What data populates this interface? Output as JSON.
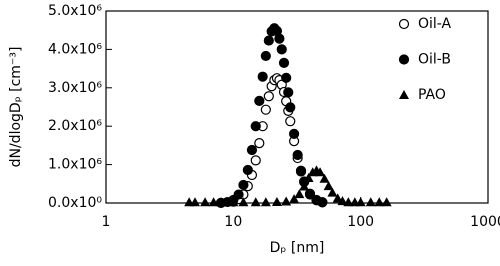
{
  "chart_data": {
    "type": "scatter",
    "x_label": "Dₚ [nm]",
    "y_label": "dN/dlogDₚ [cm⁻³]",
    "xscale": "log",
    "xlim": [
      1,
      1000
    ],
    "xticks": [
      1,
      10,
      100,
      1000
    ],
    "ylim": [
      0,
      5000000
    ],
    "yticks": [
      {
        "value": 0,
        "label": "0.0x10⁰"
      },
      {
        "value": 1000000,
        "label": "1.0x10⁶"
      },
      {
        "value": 2000000,
        "label": "2.0x10⁶"
      },
      {
        "value": 3000000,
        "label": "3.0x10⁶"
      },
      {
        "value": 4000000,
        "label": "4.0x10⁶"
      },
      {
        "value": 5000000,
        "label": "5.0x10⁶"
      }
    ],
    "legend": "top-right",
    "series": [
      {
        "name": "Oil-A",
        "color": "#000000",
        "marker": "open-circle",
        "x": [
          8,
          10,
          11,
          12,
          13,
          14,
          15,
          16,
          17,
          18,
          19,
          20,
          21,
          22,
          23,
          24,
          25,
          26,
          27,
          28,
          30,
          32,
          34,
          36,
          40,
          45,
          50
        ],
        "values": [
          2000,
          35000,
          100000,
          220000,
          440000,
          730000,
          1110000,
          1560000,
          2000000,
          2430000,
          2780000,
          3040000,
          3200000,
          3250000,
          3200000,
          3080000,
          2890000,
          2650000,
          2400000,
          2130000,
          1610000,
          1170000,
          820000,
          560000,
          240000,
          80000,
          20000
        ]
      },
      {
        "name": "Oil-B",
        "color": "#000000",
        "marker": "filled-circle",
        "x": [
          8,
          9,
          10,
          11,
          12,
          13,
          14,
          15,
          16,
          17,
          18,
          19,
          20,
          21,
          22,
          23,
          24,
          25,
          26,
          27,
          28,
          30,
          32,
          34,
          36,
          40,
          45,
          50
        ],
        "values": [
          5000,
          25000,
          80000,
          220000,
          470000,
          860000,
          1380000,
          2000000,
          2660000,
          3290000,
          3830000,
          4230000,
          4470000,
          4550000,
          4480000,
          4280000,
          4000000,
          3650000,
          3260000,
          2880000,
          2490000,
          1800000,
          1250000,
          840000,
          550000,
          220000,
          70000,
          20000
        ]
      },
      {
        "name": "PAO",
        "color": "#000000",
        "marker": "triangle",
        "x": [
          4.5,
          5,
          6,
          7,
          8,
          10,
          12,
          15,
          18,
          22,
          26,
          30,
          33,
          36,
          39,
          42,
          45,
          48,
          52,
          56,
          60,
          66,
          72,
          80,
          90,
          100,
          120,
          140,
          160
        ],
        "values": [
          20000,
          20000,
          20000,
          20000,
          20000,
          20000,
          20000,
          20000,
          20000,
          25000,
          40000,
          100000,
          230000,
          430000,
          650000,
          800000,
          850000,
          800000,
          630000,
          440000,
          270000,
          120000,
          50000,
          20000,
          20000,
          20000,
          20000,
          20000,
          20000
        ]
      }
    ]
  }
}
